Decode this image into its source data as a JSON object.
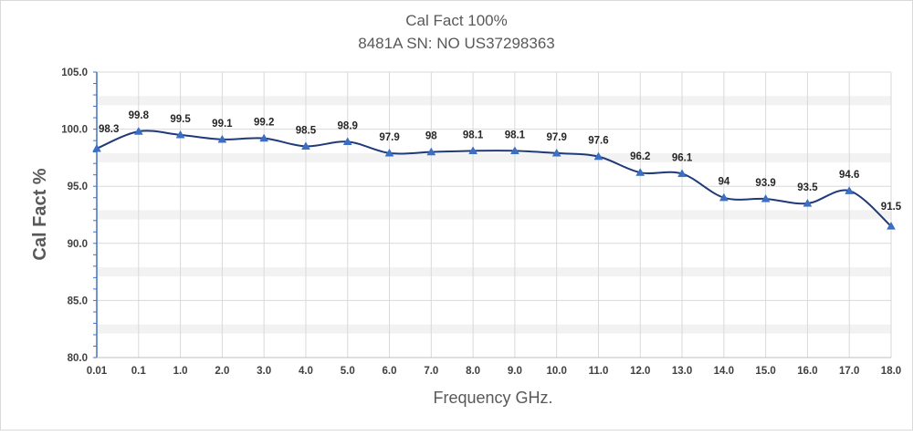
{
  "chart_data": {
    "type": "line",
    "title": "Cal Fact 100%",
    "subtitle": "8481A SN: NO US37298363",
    "xlabel": "Frequency GHz.",
    "ylabel": "Cal Fact %",
    "ylim": [
      80.0,
      105.0
    ],
    "yticks": [
      "80.0",
      "85.0",
      "90.0",
      "95.0",
      "100.0",
      "105.0"
    ],
    "categories": [
      "0.01",
      "0.1",
      "1.0",
      "2.0",
      "3.0",
      "4.0",
      "5.0",
      "6.0",
      "7.0",
      "8.0",
      "9.0",
      "10.0",
      "11.0",
      "12.0",
      "13.0",
      "14.0",
      "15.0",
      "16.0",
      "17.0",
      "18.0"
    ],
    "series": [
      {
        "values": [
          98.3,
          99.8,
          99.5,
          99.1,
          99.2,
          98.5,
          98.9,
          97.9,
          98,
          98.1,
          98.1,
          97.9,
          97.6,
          96.2,
          96.1,
          94,
          93.9,
          93.5,
          94.6,
          91.5
        ],
        "labels": [
          "98.3",
          "99.8",
          "99.5",
          "99.1",
          "99.2",
          "98.5",
          "98.9",
          "97.9",
          "98",
          "98.1",
          "98.1",
          "97.9",
          "97.6",
          "96.2",
          "96.1",
          "94",
          "93.9",
          "93.5",
          "94.6",
          "91.5"
        ]
      }
    ],
    "grid": true,
    "legend": "none",
    "colors": {
      "line": "#1f3a7a",
      "marker": "#3a6fc4",
      "grid": "#d9d9d9",
      "axis": "#4472c4"
    }
  }
}
